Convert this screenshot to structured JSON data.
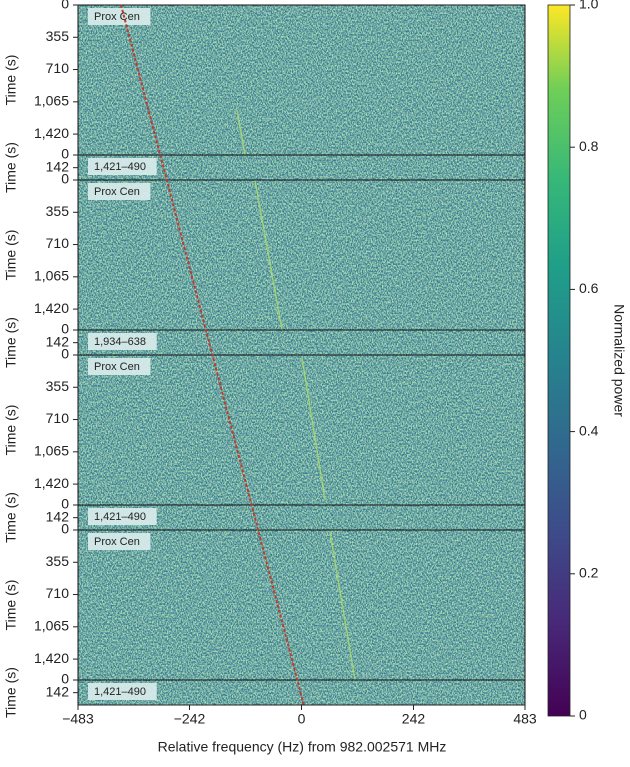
{
  "chart_data": {
    "type": "heatmap",
    "xlabel": "Relative frequency (Hz) from 982.002571 MHz",
    "xlim": [
      -483,
      483
    ],
    "xticks": [
      {
        "value": -483,
        "label": "−483"
      },
      {
        "value": -242,
        "label": "−242"
      },
      0,
      242,
      483
    ],
    "ylabel": "Time (s)",
    "panels": [
      {
        "on": {
          "label": "Prox Cen",
          "ylim": [
            0,
            1650
          ],
          "yticks": [
            0,
            355,
            710,
            {
              "value": 1065,
              "label": "1,065"
            },
            {
              "value": 1420,
              "label": "1,420"
            }
          ]
        },
        "off": {
          "label": "1,421–490",
          "ylim": [
            0,
            280
          ],
          "yticks": [
            0,
            142
          ]
        }
      },
      {
        "on": {
          "label": "Prox Cen",
          "ylim": [
            0,
            1650
          ],
          "yticks": [
            0,
            355,
            710,
            {
              "value": 1065,
              "label": "1,065"
            },
            {
              "value": 1420,
              "label": "1,420"
            }
          ]
        },
        "off": {
          "label": "1,934–638",
          "ylim": [
            0,
            280
          ],
          "yticks": [
            0,
            142
          ]
        }
      },
      {
        "on": {
          "label": "Prox Cen",
          "ylim": [
            0,
            1650
          ],
          "yticks": [
            0,
            355,
            710,
            {
              "value": 1065,
              "label": "1,065"
            },
            {
              "value": 1420,
              "label": "1,420"
            }
          ]
        },
        "off": {
          "label": "1,421–490",
          "ylim": [
            0,
            280
          ],
          "yticks": [
            0,
            142
          ]
        }
      },
      {
        "on": {
          "label": "Prox Cen",
          "ylim": [
            0,
            1650
          ],
          "yticks": [
            0,
            355,
            710,
            {
              "value": 1065,
              "label": "1,065"
            },
            {
              "value": 1420,
              "label": "1,420"
            }
          ]
        },
        "off": {
          "label": "1,421–490",
          "ylim": [
            0,
            280
          ],
          "yticks": [
            0,
            142
          ]
        }
      }
    ],
    "drift_track": {
      "x": [
        -390,
        5
      ],
      "color": "#c0392b"
    },
    "colorbar": {
      "label": "Normalized power",
      "lim": [
        0,
        1
      ],
      "ticks": [
        0,
        0.2,
        0.4,
        0.6,
        0.8,
        {
          "value": 1,
          "label": "1.0"
        }
      ]
    }
  }
}
